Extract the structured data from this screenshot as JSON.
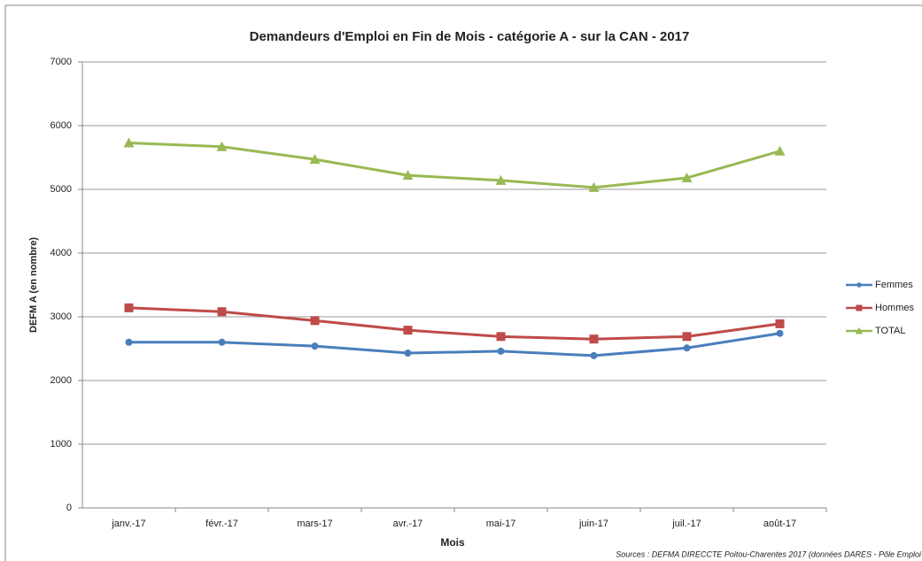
{
  "chart_data": {
    "type": "line",
    "title": "Demandeurs d'Emploi en Fin de Mois - catégorie A -  sur la CAN - 2017",
    "y_label": "DEFM A (en nombre)",
    "x_label": "Mois",
    "source": "Sources : DEFMA DIRECCTE Poitou-Charentes 2017 (données DARES - Pôle Emploi",
    "categories": [
      "janv.-17",
      "févr.-17",
      "mars-17",
      "avr.-17",
      "mai-17",
      "juin-17",
      "juil.-17",
      "août-17"
    ],
    "series": [
      {
        "name": "Femmes",
        "color": "#4a7ebb",
        "marker": "circle",
        "values": [
          2600,
          2600,
          2540,
          2430,
          2460,
          2390,
          2510,
          2740
        ]
      },
      {
        "name": "Hommes",
        "color": "#be4b48",
        "marker": "square",
        "values": [
          3140,
          3080,
          2940,
          2790,
          2690,
          2650,
          2690,
          2890
        ]
      },
      {
        "name": "TOTAL",
        "color": "#98b954",
        "marker": "triangle",
        "values": [
          5730,
          5670,
          5470,
          5220,
          5140,
          5030,
          5180,
          5600
        ]
      }
    ],
    "ylim": [
      0,
      7000
    ],
    "yticks": [
      0,
      1000,
      2000,
      3000,
      4000,
      5000,
      6000,
      7000
    ],
    "grid": true,
    "legend": "right"
  }
}
